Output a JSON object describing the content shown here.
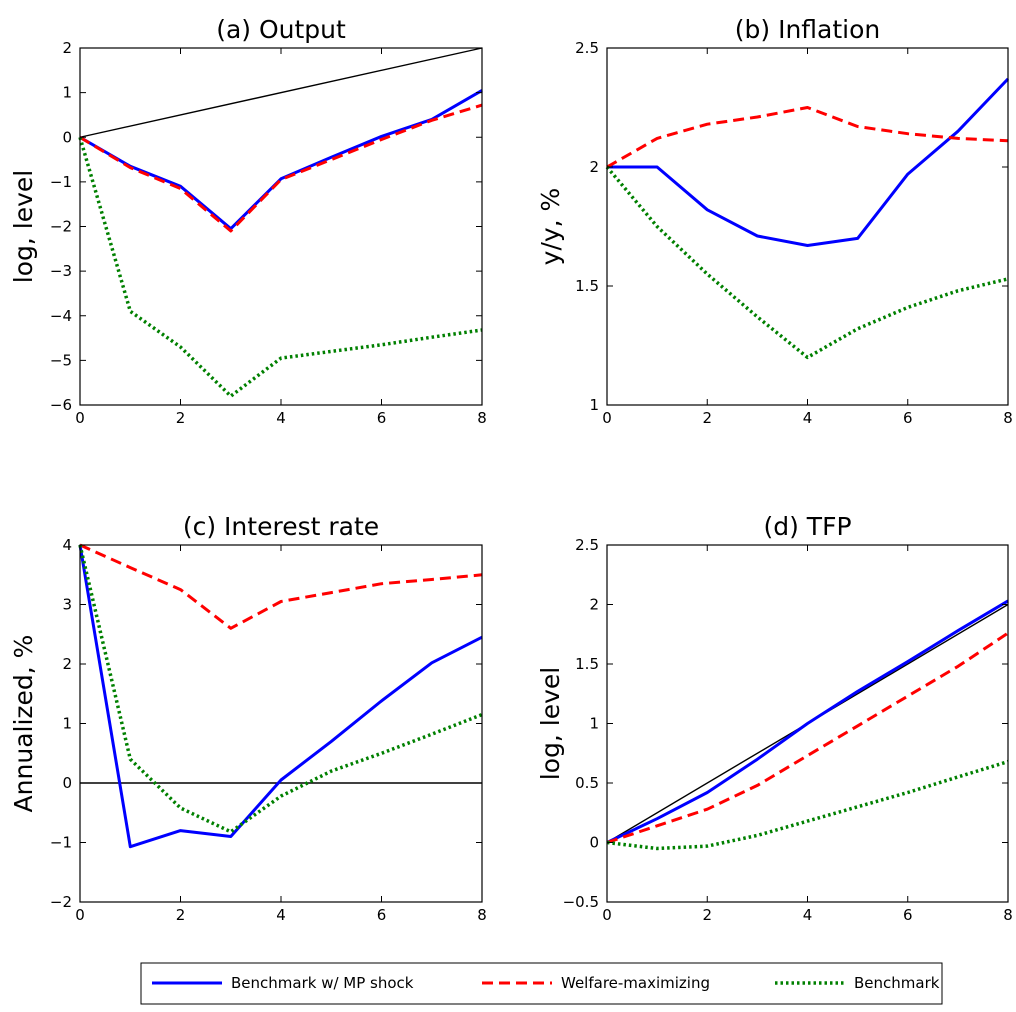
{
  "chart_data": [
    {
      "type": "line",
      "title": "(a) Output",
      "ylabel": "log, level",
      "xlabel": "",
      "xlim": [
        0,
        8
      ],
      "ylim": [
        -6,
        2
      ],
      "xticks": [
        0,
        2,
        4,
        6,
        8
      ],
      "yticks": [
        -6,
        -5,
        -4,
        -3,
        -2,
        -1,
        0,
        1,
        2
      ],
      "x": [
        0,
        1,
        2,
        3,
        4,
        5,
        6,
        7,
        8
      ],
      "reference_line": {
        "color": "#000000",
        "x": [
          0,
          8
        ],
        "y": [
          0,
          2
        ]
      },
      "series": [
        {
          "key": "blue",
          "values": [
            0,
            -0.65,
            -1.1,
            -2.05,
            -0.93,
            -0.45,
            0.02,
            0.4,
            1.05
          ]
        },
        {
          "key": "red",
          "values": [
            0,
            -0.68,
            -1.15,
            -2.1,
            -0.95,
            -0.5,
            -0.05,
            0.38,
            0.72
          ]
        },
        {
          "key": "green",
          "values": [
            0,
            -3.9,
            -4.7,
            -5.8,
            -4.95,
            -4.8,
            -4.65,
            -4.48,
            -4.32
          ]
        }
      ]
    },
    {
      "type": "line",
      "title": "(b) Inflation",
      "ylabel": "y/y, %",
      "xlabel": "",
      "xlim": [
        0,
        8
      ],
      "ylim": [
        1,
        2.5
      ],
      "xticks": [
        0,
        2,
        4,
        6,
        8
      ],
      "yticks": [
        1,
        1.5,
        2,
        2.5
      ],
      "x": [
        0,
        1,
        2,
        3,
        4,
        5,
        6,
        7,
        8
      ],
      "series": [
        {
          "key": "blue",
          "values": [
            2.0,
            2.0,
            1.82,
            1.71,
            1.67,
            1.7,
            1.97,
            2.15,
            2.37
          ]
        },
        {
          "key": "red",
          "values": [
            2.0,
            2.12,
            2.18,
            2.21,
            2.25,
            2.17,
            2.14,
            2.12,
            2.11
          ]
        },
        {
          "key": "green",
          "values": [
            2.0,
            1.75,
            1.55,
            1.37,
            1.2,
            1.32,
            1.41,
            1.48,
            1.53
          ]
        }
      ]
    },
    {
      "type": "line",
      "title": "(c) Interest rate",
      "ylabel": "Annualized, %",
      "xlabel": "",
      "xlim": [
        0,
        8
      ],
      "ylim": [
        -2,
        4
      ],
      "xticks": [
        0,
        2,
        4,
        6,
        8
      ],
      "yticks": [
        -2,
        -1,
        0,
        1,
        2,
        3,
        4
      ],
      "x": [
        0,
        1,
        2,
        3,
        4,
        5,
        6,
        7,
        8
      ],
      "reference_line": {
        "color": "#000000",
        "x": [
          0,
          8
        ],
        "y": [
          0,
          0
        ]
      },
      "series": [
        {
          "key": "blue",
          "values": [
            4.0,
            -1.07,
            -0.8,
            -0.9,
            0.05,
            0.7,
            1.38,
            2.02,
            2.45
          ]
        },
        {
          "key": "red",
          "values": [
            4.0,
            3.62,
            3.25,
            2.6,
            3.05,
            3.2,
            3.35,
            3.42,
            3.5
          ]
        },
        {
          "key": "green",
          "values": [
            4.0,
            0.4,
            -0.42,
            -0.82,
            -0.22,
            0.2,
            0.5,
            0.82,
            1.15
          ]
        }
      ]
    },
    {
      "type": "line",
      "title": "(d) TFP",
      "ylabel": "log, level",
      "xlabel": "",
      "xlim": [
        0,
        8
      ],
      "ylim": [
        -0.5,
        2.5
      ],
      "xticks": [
        0,
        2,
        4,
        6,
        8
      ],
      "yticks": [
        -0.5,
        0,
        0.5,
        1,
        1.5,
        2,
        2.5
      ],
      "x": [
        0,
        1,
        2,
        3,
        4,
        5,
        6,
        7,
        8
      ],
      "reference_line": {
        "color": "#000000",
        "x": [
          0,
          8
        ],
        "y": [
          0,
          2
        ]
      },
      "series": [
        {
          "key": "blue",
          "values": [
            0,
            0.2,
            0.42,
            0.7,
            1.0,
            1.27,
            1.52,
            1.78,
            2.03
          ]
        },
        {
          "key": "red",
          "values": [
            0,
            0.14,
            0.28,
            0.48,
            0.73,
            0.98,
            1.23,
            1.48,
            1.76
          ]
        },
        {
          "key": "green",
          "values": [
            0,
            -0.05,
            -0.03,
            0.06,
            0.18,
            0.3,
            0.42,
            0.55,
            0.68
          ]
        }
      ]
    }
  ],
  "legend": {
    "placement": "bottom-center",
    "items": [
      {
        "key": "blue",
        "label": "Benchmark w/ MP shock",
        "color": "#0000ff",
        "style": "solid"
      },
      {
        "key": "red",
        "label": "Welfare-maximizing",
        "color": "#ff0000",
        "style": "dashed"
      },
      {
        "key": "green",
        "label": "Benchmark",
        "color": "#008000",
        "style": "dotted"
      }
    ]
  }
}
